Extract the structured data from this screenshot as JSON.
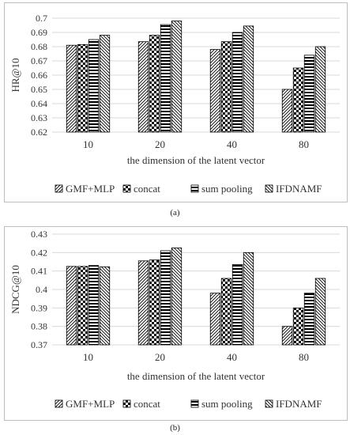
{
  "chart_data": [
    {
      "type": "bar",
      "title": "",
      "xlabel": "the dimension of the latent vector",
      "ylabel": "HR@10",
      "ylim": [
        0.62,
        0.7
      ],
      "yticks": [
        "0.62",
        "0.63",
        "0.64",
        "0.65",
        "0.66",
        "0.67",
        "0.68",
        "0.69",
        "0.7"
      ],
      "categories": [
        "10",
        "20",
        "40",
        "80"
      ],
      "series": [
        {
          "name": "GMF+MLP",
          "values": [
            0.681,
            0.6835,
            0.678,
            0.65
          ]
        },
        {
          "name": "concat",
          "values": [
            0.6815,
            0.688,
            0.6835,
            0.665
          ]
        },
        {
          "name": "sum pooling",
          "values": [
            0.685,
            0.6955,
            0.69,
            0.674
          ]
        },
        {
          "name": "IFDNAMF",
          "values": [
            0.688,
            0.698,
            0.6945,
            0.68
          ]
        }
      ],
      "legend_position": "bottom",
      "grid": "horizontal",
      "caption": "(a)"
    },
    {
      "type": "bar",
      "title": "",
      "xlabel": "the dimension of the latent vector",
      "ylabel": "NDCG@10",
      "ylim": [
        0.37,
        0.43
      ],
      "yticks": [
        "0.37",
        "0.38",
        "0.39",
        "0.4",
        "0.41",
        "0.42",
        "0.43"
      ],
      "categories": [
        "10",
        "20",
        "40",
        "80"
      ],
      "series": [
        {
          "name": "GMF+MLP",
          "values": [
            0.4125,
            0.4155,
            0.398,
            0.38
          ]
        },
        {
          "name": "concat",
          "values": [
            0.4125,
            0.416,
            0.406,
            0.39
          ]
        },
        {
          "name": "sum pooling",
          "values": [
            0.413,
            0.421,
            0.4135,
            0.398
          ]
        },
        {
          "name": "IFDNAMF",
          "values": [
            0.4123,
            0.4225,
            0.42,
            0.406
          ]
        }
      ],
      "legend_position": "bottom",
      "grid": "horizontal",
      "caption": "(b)"
    }
  ]
}
